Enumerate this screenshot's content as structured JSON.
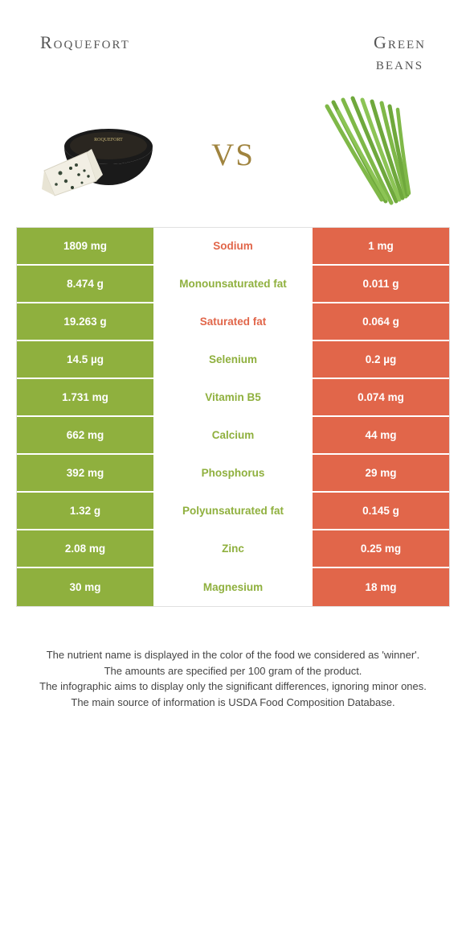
{
  "header": {
    "left_title": "Roquefort",
    "right_title_line1": "Green",
    "right_title_line2": "beans",
    "vs": "vs"
  },
  "colors": {
    "green": "#8fb03e",
    "orange": "#e1664a",
    "gold": "#a0843f"
  },
  "table": {
    "rows": [
      {
        "left": "1809 mg",
        "label": "Sodium",
        "label_color": "#e1664a",
        "right": "1 mg"
      },
      {
        "left": "8.474 g",
        "label": "Monounsaturated fat",
        "label_color": "#8fb03e",
        "right": "0.011 g"
      },
      {
        "left": "19.263 g",
        "label": "Saturated fat",
        "label_color": "#e1664a",
        "right": "0.064 g"
      },
      {
        "left": "14.5 µg",
        "label": "Selenium",
        "label_color": "#8fb03e",
        "right": "0.2 µg"
      },
      {
        "left": "1.731 mg",
        "label": "Vitamin B5",
        "label_color": "#8fb03e",
        "right": "0.074 mg"
      },
      {
        "left": "662 mg",
        "label": "Calcium",
        "label_color": "#8fb03e",
        "right": "44 mg"
      },
      {
        "left": "392 mg",
        "label": "Phosphorus",
        "label_color": "#8fb03e",
        "right": "29 mg"
      },
      {
        "left": "1.32 g",
        "label": "Polyunsaturated fat",
        "label_color": "#8fb03e",
        "right": "0.145 g"
      },
      {
        "left": "2.08 mg",
        "label": "Zinc",
        "label_color": "#8fb03e",
        "right": "0.25 mg"
      },
      {
        "left": "30 mg",
        "label": "Magnesium",
        "label_color": "#8fb03e",
        "right": "18 mg"
      }
    ]
  },
  "footer": {
    "line1": "The nutrient name is displayed in the color of the food we considered as 'winner'.",
    "line2": "The amounts are specified per 100 gram of the product.",
    "line3": "The infographic aims to display only the significant differences, ignoring minor ones.",
    "line4": "The main source of information is USDA Food Composition Database."
  }
}
